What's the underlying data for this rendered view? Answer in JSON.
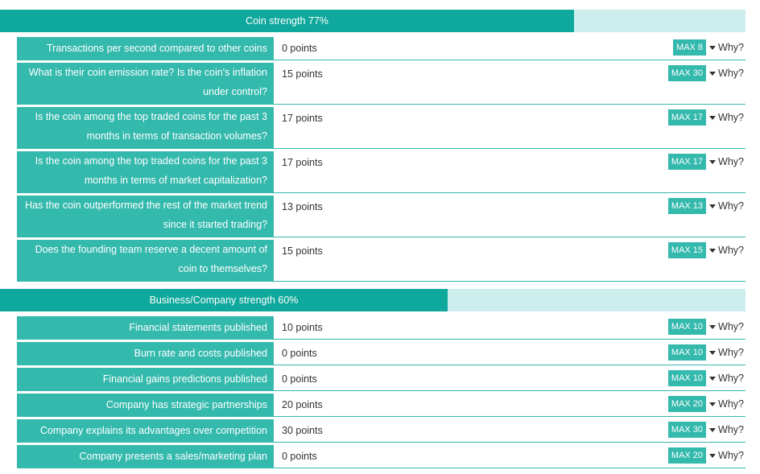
{
  "sections": [
    {
      "title": "Coin strength 77%",
      "strength_fraction": 0.77,
      "rows": [
        {
          "question": "Transactions per second compared to other coins",
          "points": "0 points",
          "max": "MAX 8",
          "why": "Why?"
        },
        {
          "question": "What is their coin emission rate? Is the coin's inflation under control?",
          "points": "15 points",
          "max": "MAX 30",
          "why": "Why?"
        },
        {
          "question": "Is the coin among the top traded coins for the past 3 months in terms of transaction volumes?",
          "points": "17 points",
          "max": "MAX 17",
          "why": "Why?"
        },
        {
          "question": "Is the coin among the top traded coins for the past 3 months in terms of market capitalization?",
          "points": "17 points",
          "max": "MAX 17",
          "why": "Why?"
        },
        {
          "question": "Has the coin outperformed the rest of the market trend since it started trading?",
          "points": "13 points",
          "max": "MAX 13",
          "why": "Why?"
        },
        {
          "question": "Does the founding team reserve a decent amount of coin to themselves?",
          "points": "15 points",
          "max": "MAX 15",
          "why": "Why?"
        }
      ]
    },
    {
      "title": "Business/Company strength 60%",
      "strength_fraction": 0.6,
      "rows": [
        {
          "question": "Financial statements published",
          "points": "10 points",
          "max": "MAX 10",
          "why": "Why?"
        },
        {
          "question": "Burn rate and costs published",
          "points": "0 points",
          "max": "MAX 10",
          "why": "Why?"
        },
        {
          "question": "Financial gains predictions published",
          "points": "0 points",
          "max": "MAX 10",
          "why": "Why?"
        },
        {
          "question": "Company has strategic partnerships",
          "points": "20 points",
          "max": "MAX 20",
          "why": "Why?"
        },
        {
          "question": "Company explains its advantages over competition",
          "points": "30 points",
          "max": "MAX 30",
          "why": "Why?"
        },
        {
          "question": "Company presents a sales/marketing plan",
          "points": "0 points",
          "max": "MAX 20",
          "why": "Why?"
        }
      ]
    }
  ]
}
